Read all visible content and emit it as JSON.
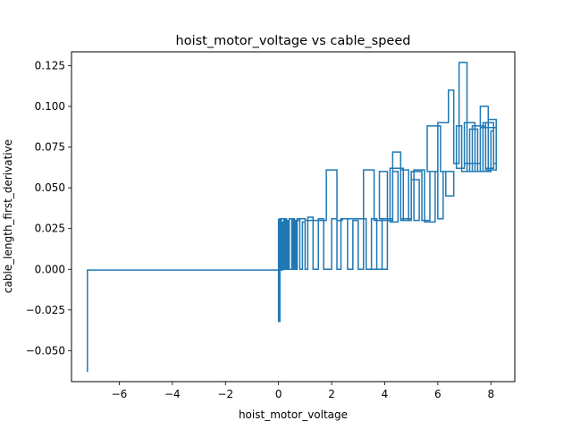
{
  "chart_data": {
    "type": "line",
    "title": "hoist_motor_voltage vs cable_speed",
    "xlabel": "hoist_motor_voltage",
    "ylabel": "cable_length_first_derivative",
    "xlim": [
      -7.8,
      8.9
    ],
    "ylim": [
      -0.069,
      0.1335
    ],
    "xticks": [
      -6,
      -4,
      -2,
      0,
      2,
      4,
      6,
      8
    ],
    "xtick_labels": [
      "−6",
      "−4",
      "−2",
      "0",
      "2",
      "4",
      "6",
      "8"
    ],
    "yticks": [
      -0.05,
      -0.025,
      0.0,
      0.025,
      0.05,
      0.075,
      0.1,
      0.125
    ],
    "ytick_labels": [
      "−0.050",
      "−0.025",
      "0.000",
      "0.025",
      "0.050",
      "0.075",
      "0.100",
      "0.125"
    ],
    "grid": false,
    "series": [
      {
        "color": "#1f77b4",
        "x": [
          -7.2,
          -7.2,
          0.0,
          0.0,
          0.0,
          0.05,
          0.05,
          0.1,
          0.1,
          0.15,
          0.15,
          0.2,
          0.2,
          0.25,
          0.25,
          0.3,
          0.3,
          0.35,
          0.35,
          0.4,
          0.4,
          0.5,
          0.5,
          0.55,
          0.55,
          0.6,
          0.6,
          0.65,
          0.65,
          0.7,
          0.7,
          0.8,
          0.8,
          0.9,
          0.9,
          1.0,
          1.0,
          1.1,
          1.1,
          1.3,
          1.3,
          1.5,
          1.5,
          1.7,
          1.7,
          2.0,
          2.0,
          2.2,
          2.2,
          2.35,
          2.35,
          2.6,
          2.6,
          2.8,
          2.8,
          3.0,
          3.0,
          3.2,
          3.2,
          3.3,
          3.3,
          3.5,
          3.5,
          3.7,
          3.7,
          3.9,
          3.9,
          4.1,
          4.1,
          3.3,
          3.3,
          2.4,
          2.4,
          2.2,
          2.2,
          1.8,
          1.8,
          1.0,
          1.0,
          0.8,
          0.8,
          0.6,
          0.6,
          0.4,
          0.4,
          0.2,
          0.2,
          0.1,
          0.1,
          0.0
        ],
        "y": [
          -0.063,
          -0.0005,
          -0.0005,
          0.031,
          -0.032,
          -0.032,
          0.031,
          0.031,
          -0.0005,
          -0.0005,
          0.029,
          0.029,
          0.0,
          0.0,
          0.031,
          0.031,
          0.0,
          0.0,
          0.03,
          0.03,
          0.0,
          0.0,
          0.031,
          0.031,
          0.0,
          0.0,
          0.03,
          0.03,
          0.0,
          0.0,
          0.031,
          0.031,
          0.0,
          0.0,
          0.029,
          0.029,
          0.0,
          0.0,
          0.032,
          0.032,
          0.0,
          0.0,
          0.031,
          0.031,
          0.0,
          0.0,
          0.031,
          0.031,
          0.0,
          0.0,
          0.031,
          0.031,
          0.0,
          0.0,
          0.03,
          0.03,
          0.0,
          0.0,
          0.031,
          0.031,
          0.0,
          0.0,
          0.031,
          0.031,
          0.0,
          0.0,
          0.031,
          0.031,
          0.0,
          0.0,
          0.031,
          0.031,
          0.03,
          0.03,
          0.061,
          0.061,
          0.03,
          0.03,
          0.031,
          0.031,
          0.03,
          0.03,
          0.031,
          0.031,
          0.029,
          0.029,
          0.031,
          0.031,
          0.029,
          0.029
        ]
      },
      {
        "color": "#1f77b4",
        "x": [
          3.2,
          3.2,
          3.6,
          3.6,
          4.1,
          4.1,
          3.8,
          3.8,
          4.3,
          4.3,
          4.5,
          4.5,
          4.2,
          4.2,
          4.7,
          4.7,
          4.9,
          4.9,
          4.6,
          4.6,
          5.0,
          5.0,
          5.3,
          5.3,
          5.1,
          5.1,
          5.5,
          5.5,
          5.9,
          5.9,
          5.6,
          5.6,
          6.1,
          6.1,
          6.3,
          6.3,
          6.6,
          6.6,
          6.2,
          6.2,
          6.0,
          6.0,
          5.7,
          5.7,
          5.4,
          5.4,
          5.0,
          5.0,
          4.6,
          4.6,
          4.3,
          4.3,
          4.0
        ],
        "y": [
          0.03,
          0.061,
          0.061,
          0.03,
          0.03,
          0.06,
          0.06,
          0.031,
          0.031,
          0.06,
          0.06,
          0.029,
          0.029,
          0.062,
          0.062,
          0.03,
          0.03,
          0.061,
          0.061,
          0.03,
          0.03,
          0.055,
          0.055,
          0.03,
          0.03,
          0.061,
          0.061,
          0.029,
          0.029,
          0.06,
          0.06,
          0.088,
          0.088,
          0.06,
          0.06,
          0.045,
          0.045,
          0.06,
          0.06,
          0.031,
          0.031,
          0.06,
          0.06,
          0.03,
          0.03,
          0.06,
          0.06,
          0.031,
          0.031,
          0.072,
          0.072,
          0.03,
          0.03
        ]
      },
      {
        "color": "#1f77b4",
        "x": [
          6.0,
          6.0,
          6.4,
          6.4,
          6.6,
          6.6,
          6.8,
          6.8,
          7.1,
          7.1,
          7.4,
          7.4,
          7.0,
          7.0,
          7.6,
          7.6,
          7.9,
          7.9,
          7.3,
          7.3,
          7.8,
          7.8,
          8.1,
          8.1,
          8.0,
          8.0,
          7.7,
          7.7,
          8.1,
          8.1,
          8.2,
          8.2,
          7.9,
          7.9,
          7.5,
          7.5,
          7.2,
          7.2,
          6.9,
          6.9,
          6.7,
          6.7,
          7.0,
          7.0,
          7.4,
          7.4,
          7.6,
          7.6,
          8.2,
          8.2,
          7.8,
          7.8,
          8.0
        ],
        "y": [
          0.06,
          0.09,
          0.09,
          0.11,
          0.11,
          0.065,
          0.065,
          0.127,
          0.127,
          0.06,
          0.06,
          0.09,
          0.09,
          0.065,
          0.065,
          0.1,
          0.1,
          0.06,
          0.06,
          0.088,
          0.088,
          0.062,
          0.062,
          0.085,
          0.085,
          0.06,
          0.06,
          0.09,
          0.09,
          0.065,
          0.065,
          0.092,
          0.092,
          0.06,
          0.06,
          0.086,
          0.086,
          0.06,
          0.06,
          0.088,
          0.088,
          0.062,
          0.062,
          0.09,
          0.09,
          0.06,
          0.06,
          0.087,
          0.087,
          0.061,
          0.061,
          0.09,
          0.09
        ]
      }
    ]
  }
}
